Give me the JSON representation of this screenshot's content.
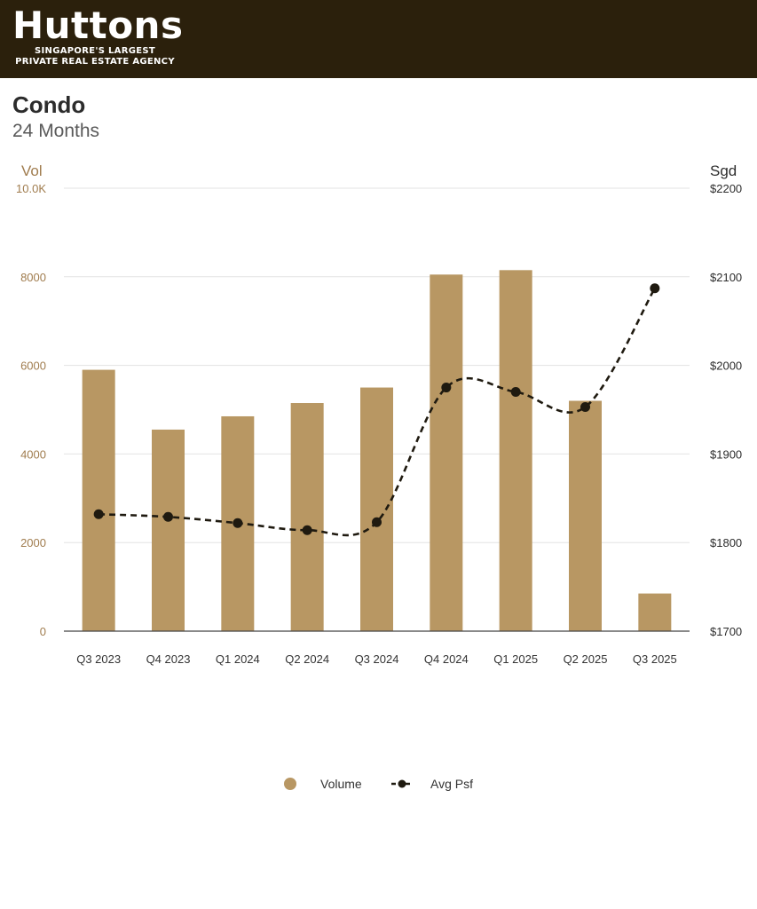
{
  "header": {
    "brand": "Huttons",
    "tagline_1": "SINGAPORE'S LARGEST",
    "tagline_2": "PRIVATE REAL ESTATE AGENCY",
    "background": "#2b200c"
  },
  "chart_title": "Condo",
  "chart_subtitle": "24 Months",
  "legend": {
    "bar_label": "Volume",
    "line_label": "Avg Psf"
  },
  "colors": {
    "bar": "#b89763",
    "line": "#1f1a10",
    "left_axis_text": "#a07c4e",
    "grid": "#e3e3e3"
  },
  "chart_data": {
    "type": "bar",
    "categories": [
      "Q3 2023",
      "Q4 2023",
      "Q1 2024",
      "Q2 2024",
      "Q3 2024",
      "Q4 2024",
      "Q1 2025",
      "Q2 2025",
      "Q3 2025"
    ],
    "series": [
      {
        "name": "Volume",
        "type": "bar",
        "axis": "left",
        "values": [
          5900,
          4550,
          4850,
          5150,
          5500,
          8050,
          8150,
          5200,
          850
        ]
      },
      {
        "name": "Avg Psf",
        "type": "line",
        "axis": "right",
        "style": "dashed, smoothed, with markers",
        "values": [
          1832,
          1829,
          1822,
          1814,
          1823,
          1975,
          1970,
          1953,
          2087
        ]
      }
    ],
    "left_axis": {
      "label": "Vol",
      "range": [
        0,
        10000
      ],
      "ticks": [
        0,
        2000,
        4000,
        6000,
        8000,
        10000
      ],
      "tick_labels": [
        "0",
        "2000",
        "4000",
        "6000",
        "8000",
        "10.0K"
      ]
    },
    "right_axis": {
      "label": "Sgd",
      "range": [
        1700,
        2200
      ],
      "ticks": [
        1700,
        1800,
        1900,
        2000,
        2100,
        2200
      ],
      "tick_labels": [
        "$1700",
        "$1800",
        "$1900",
        "$2000",
        "$2100",
        "$2200"
      ]
    },
    "grid": true,
    "legend_position": "bottom"
  }
}
